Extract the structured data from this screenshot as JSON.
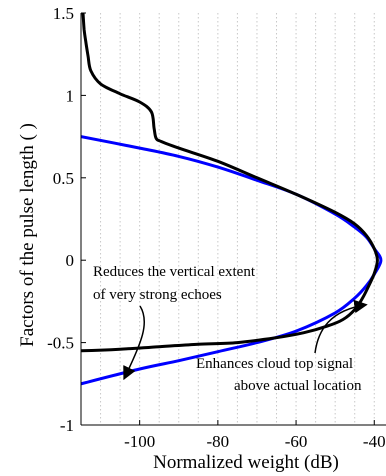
{
  "chart_data": {
    "type": "line",
    "title": "",
    "xlabel": "Normalized weight (dB)",
    "ylabel": "Factors of the pulse length ( )",
    "xlim": [
      -115,
      -37
    ],
    "ylim": [
      -1,
      1.5
    ],
    "xticks": [
      -100,
      -80,
      -60,
      -40
    ],
    "xtick_labels": [
      "-100",
      "-80",
      "-60",
      "-40"
    ],
    "yticks": [
      -1,
      -0.5,
      0,
      0.5,
      1,
      1.5
    ],
    "ytick_labels": [
      "-1",
      "-0.5",
      "0",
      "0.5",
      "1",
      "1.5"
    ],
    "grid": "vertical dotted",
    "series": [
      {
        "color": "#0000ff",
        "x": [
          -115,
          -100,
          -90,
          -80,
          -70,
          -60,
          -50,
          -45,
          -42,
          -40,
          -38.3,
          -40,
          -42,
          -45,
          -50,
          -60,
          -70,
          -80,
          -90,
          -100,
          -115
        ],
        "y": [
          0.75,
          0.68,
          0.63,
          0.565,
          0.485,
          0.4,
          0.28,
          0.2,
          0.14,
          0.07,
          0.0,
          -0.085,
          -0.155,
          -0.23,
          -0.32,
          -0.43,
          -0.5,
          -0.555,
          -0.61,
          -0.66,
          -0.75
        ]
      },
      {
        "color": "#000000",
        "x": [
          -114.5,
          -114.2,
          -113.8,
          -113.2,
          -112.5,
          -110,
          -105,
          -100,
          -97,
          -96.3,
          -95.8,
          -94.5,
          -90,
          -80,
          -70,
          -60,
          -50,
          -45,
          -42,
          -40,
          -39.2,
          -40,
          -41.5,
          -43,
          -45,
          -48,
          -52,
          -58,
          -65,
          -75,
          -85,
          -95,
          -105,
          -115
        ],
        "y": [
          1.5,
          1.4,
          1.33,
          1.24,
          1.15,
          1.07,
          1.01,
          0.96,
          0.9,
          0.8,
          0.74,
          0.72,
          0.68,
          0.6,
          0.5,
          0.4,
          0.29,
          0.22,
          0.15,
          0.07,
          0.0,
          -0.08,
          -0.16,
          -0.23,
          -0.3,
          -0.36,
          -0.4,
          -0.44,
          -0.47,
          -0.5,
          -0.51,
          -0.525,
          -0.54,
          -0.55
        ]
      }
    ],
    "annotations": [
      {
        "lines": [
          "Reduces the vertical extent",
          "of very strong echoes"
        ],
        "target_x": -104,
        "target_y": -0.72
      },
      {
        "lines": [
          "Enhances cloud top signal",
          "above actual location"
        ],
        "target_x": -42,
        "target_y": -0.27
      }
    ]
  }
}
